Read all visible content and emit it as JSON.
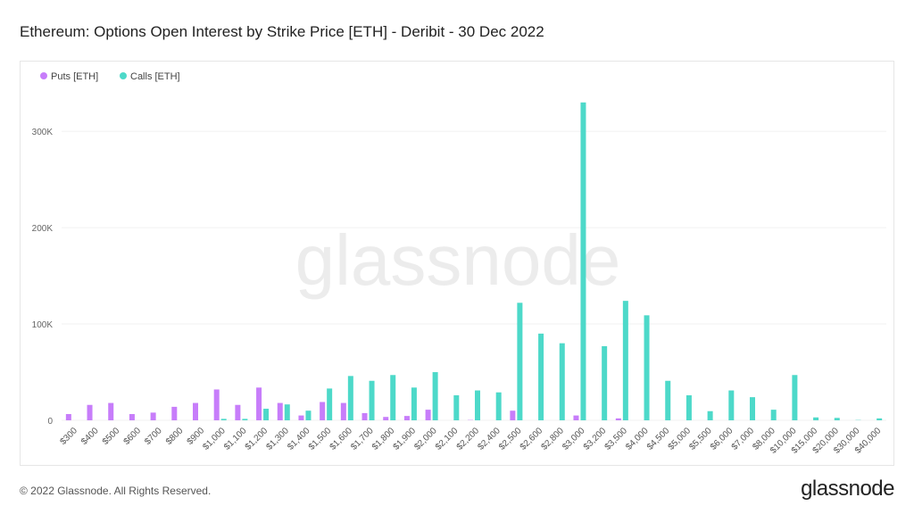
{
  "title": "Ethereum: Options Open Interest by Strike Price [ETH] - Deribit - 30 Dec 2022",
  "footer": "© 2022 Glassnode. All Rights Reserved.",
  "logo": "glassnode",
  "watermark": "glassnode",
  "chart_data": {
    "type": "bar",
    "title": "Ethereum: Options Open Interest by Strike Price [ETH] - Deribit - 30 Dec 2022",
    "legend_position": "top-left",
    "grid": true,
    "ylim": [
      0,
      340000
    ],
    "yticks": [
      0,
      100000,
      200000,
      300000
    ],
    "ytick_labels": [
      "0",
      "100K",
      "200K",
      "300K"
    ],
    "categories": [
      "$300",
      "$400",
      "$500",
      "$600",
      "$700",
      "$800",
      "$900",
      "$1,000",
      "$1,100",
      "$1,200",
      "$1,300",
      "$1,400",
      "$1,500",
      "$1,600",
      "$1,700",
      "$1,800",
      "$1,900",
      "$2,000",
      "$2,100",
      "$2,200",
      "$2,400",
      "$2,500",
      "$2,600",
      "$2,800",
      "$3,000",
      "$3,200",
      "$3,500",
      "$4,000",
      "$4,500",
      "$5,000",
      "$5,500",
      "$6,000",
      "$7,000",
      "$8,000",
      "$10,000",
      "$15,000",
      "$20,000",
      "$30,000",
      "$40,000"
    ],
    "series": [
      {
        "name": "Puts [ETH]",
        "color": "#c77dfa",
        "values": [
          6500,
          16000,
          18000,
          6500,
          8000,
          14000,
          18000,
          32000,
          16000,
          34000,
          18000,
          5000,
          19000,
          18000,
          7500,
          3500,
          4500,
          11000,
          0,
          300,
          0,
          10000,
          0,
          0,
          5000,
          0,
          2000,
          0,
          0,
          0,
          0,
          0,
          0,
          0,
          0,
          0,
          0,
          0,
          0
        ]
      },
      {
        "name": "Calls [ETH]",
        "color": "#4dd9c9",
        "values": [
          0,
          0,
          0,
          0,
          0,
          0,
          0,
          1500,
          1500,
          12000,
          16500,
          10000,
          33000,
          46000,
          41000,
          47000,
          34000,
          50000,
          26000,
          31000,
          29000,
          122000,
          90000,
          80000,
          330000,
          77000,
          124000,
          109000,
          41000,
          26000,
          9500,
          31000,
          24000,
          11000,
          47000,
          3000,
          2500,
          300,
          2000
        ]
      }
    ]
  }
}
